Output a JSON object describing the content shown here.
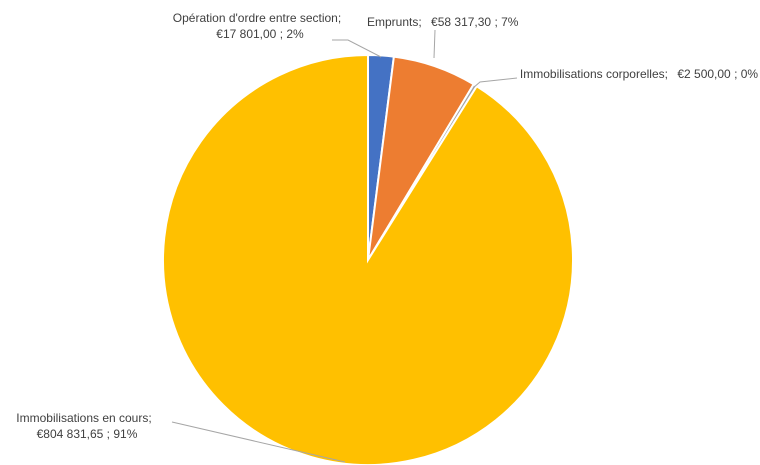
{
  "chart_data": {
    "type": "pie",
    "categories": [
      "Opération d'ordre entre section",
      "Emprunts",
      "Immobilisations corporelles",
      "Immobilisations en cours"
    ],
    "values": [
      17801.0,
      58317.3,
      2500.0,
      804831.65
    ],
    "value_labels": [
      "€17 801,00 ; 2%",
      "€58 317,30 ; 7%",
      "€2 500,00 ; 0%",
      "€804 831,65 ; 91%"
    ],
    "label_separator": ";",
    "colors": [
      "#4472c4",
      "#ed7d31",
      "#a5a5a5",
      "#ffc000"
    ]
  }
}
